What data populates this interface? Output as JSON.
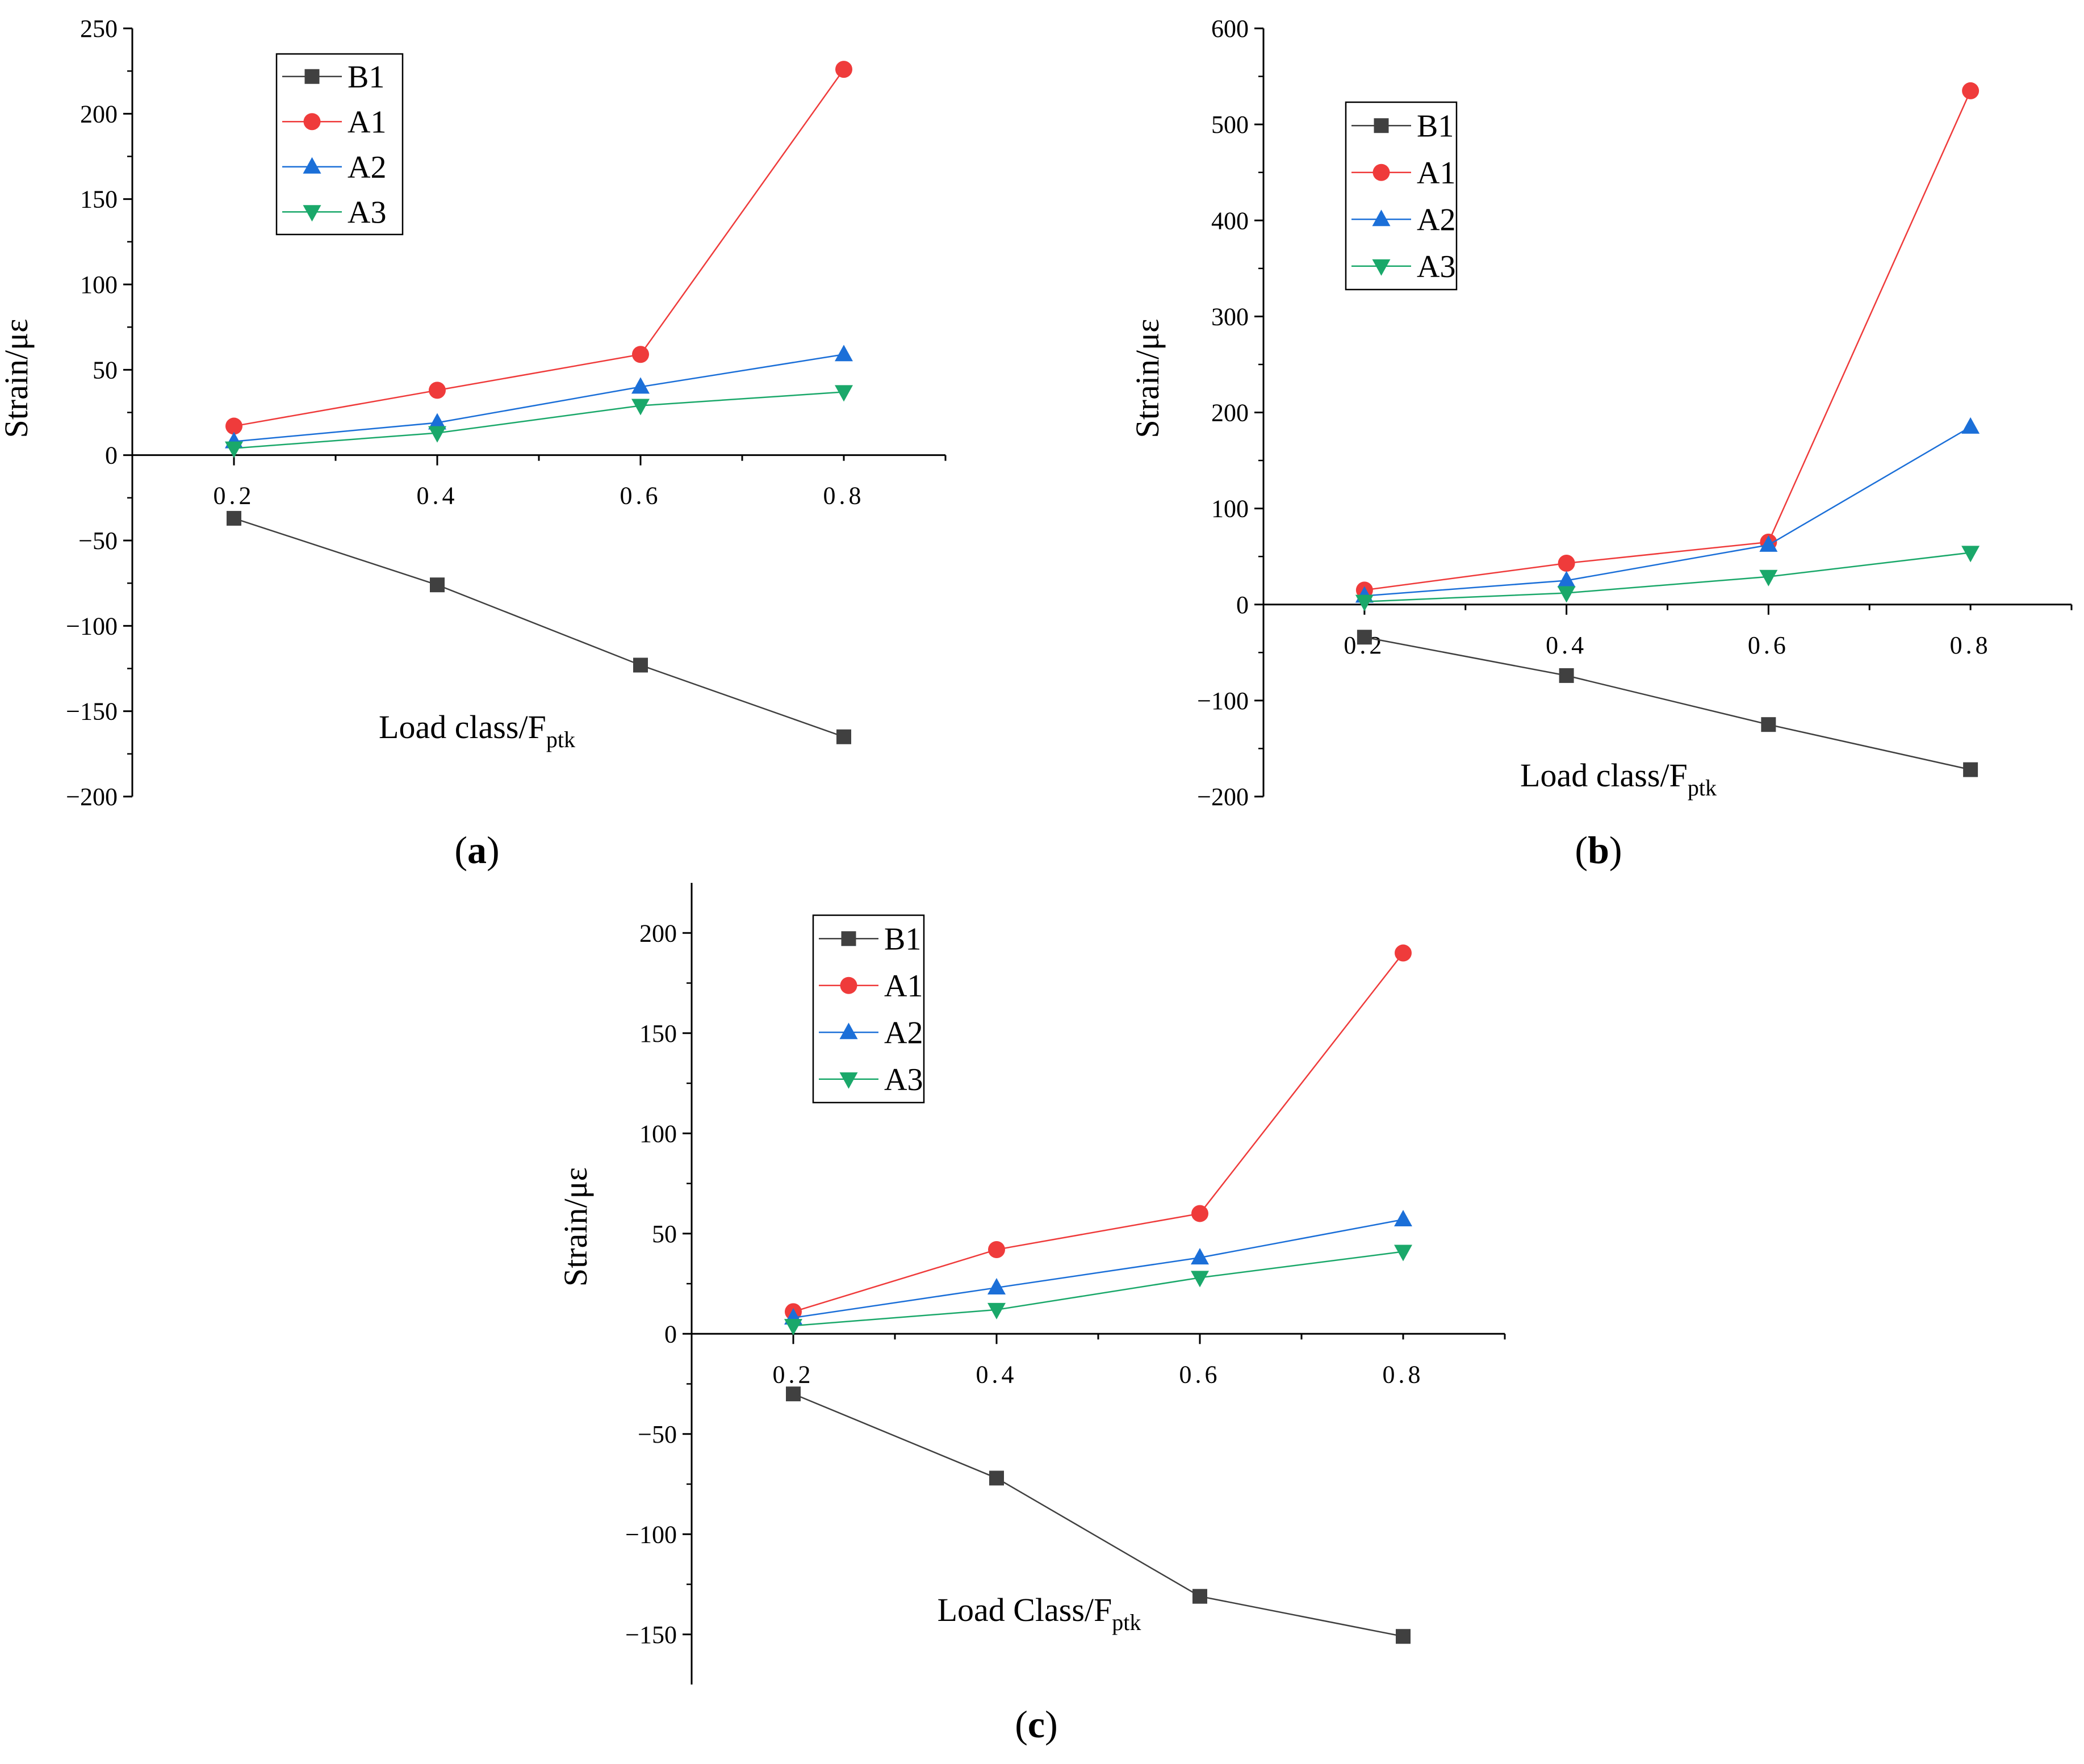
{
  "chart_data": [
    {
      "panel": "a",
      "type": "line",
      "categories": [
        "0.2",
        "0.4",
        "0.6",
        "0.8"
      ],
      "x": [
        0.2,
        0.4,
        0.6,
        0.8
      ],
      "series": [
        {
          "name": "B1",
          "values": [
            -37,
            -76,
            -123,
            -165
          ],
          "color": "#404040",
          "marker": "square"
        },
        {
          "name": "A1",
          "values": [
            17,
            38,
            59,
            226
          ],
          "color": "#ef3b3b",
          "marker": "circle"
        },
        {
          "name": "A2",
          "values": [
            8,
            19,
            40,
            59
          ],
          "color": "#1b6fd8",
          "marker": "triangle-up"
        },
        {
          "name": "A3",
          "values": [
            4,
            13,
            29,
            37
          ],
          "color": "#1aa86a",
          "marker": "triangle-down"
        }
      ],
      "yticks": [
        250,
        200,
        150,
        100,
        50,
        0,
        -50,
        -100,
        -150,
        -200
      ],
      "ylim": [
        -200,
        250
      ],
      "xlim": [
        0.1,
        0.9
      ],
      "ylabel": "Strain/με",
      "xlabel_main": "Load class/F",
      "xlabel_sub": "ptk",
      "label_open": "(",
      "label_letter": "a",
      "label_close": ")"
    },
    {
      "panel": "b",
      "type": "line",
      "categories": [
        "0.2",
        "0.4",
        "0.6",
        "0.8"
      ],
      "x": [
        0.2,
        0.4,
        0.6,
        0.8
      ],
      "series": [
        {
          "name": "B1",
          "values": [
            -34,
            -74,
            -125,
            -172
          ],
          "color": "#404040",
          "marker": "square"
        },
        {
          "name": "A1",
          "values": [
            15,
            43,
            65,
            535
          ],
          "color": "#ef3b3b",
          "marker": "circle"
        },
        {
          "name": "A2",
          "values": [
            9,
            25,
            62,
            185
          ],
          "color": "#1b6fd8",
          "marker": "triangle-up"
        },
        {
          "name": "A3",
          "values": [
            3,
            12,
            29,
            54
          ],
          "color": "#1aa86a",
          "marker": "triangle-down"
        }
      ],
      "yticks": [
        600,
        500,
        400,
        300,
        200,
        100,
        0,
        -100,
        -200
      ],
      "ylim": [
        -200,
        600
      ],
      "xlim": [
        0.1,
        0.9
      ],
      "ylabel": "Strain/με",
      "xlabel_main": "Load class/F",
      "xlabel_sub": "ptk",
      "label_open": "(",
      "label_letter": "b",
      "label_close": ")"
    },
    {
      "panel": "c",
      "type": "line",
      "categories": [
        "0.2",
        "0.4",
        "0.6",
        "0.8"
      ],
      "x": [
        0.2,
        0.4,
        0.6,
        0.8
      ],
      "series": [
        {
          "name": "B1",
          "values": [
            -30,
            -72,
            -131,
            -151
          ],
          "color": "#404040",
          "marker": "square"
        },
        {
          "name": "A1",
          "values": [
            11,
            42,
            60,
            190
          ],
          "color": "#ef3b3b",
          "marker": "circle"
        },
        {
          "name": "A2",
          "values": [
            8,
            23,
            38,
            57
          ],
          "color": "#1b6fd8",
          "marker": "triangle-up"
        },
        {
          "name": "A3",
          "values": [
            4,
            12,
            28,
            41
          ],
          "color": "#1aa86a",
          "marker": "triangle-down"
        }
      ],
      "yticks": [
        200,
        150,
        100,
        50,
        0,
        -50,
        -100,
        -150
      ],
      "ylim": [
        -175,
        225
      ],
      "xlim": [
        0.1,
        0.9
      ],
      "ylabel": "Strain/με",
      "xlabel_main": "Load Class/F",
      "xlabel_sub": "ptk",
      "label_open": "(",
      "label_letter": "c",
      "label_close": ")"
    }
  ]
}
